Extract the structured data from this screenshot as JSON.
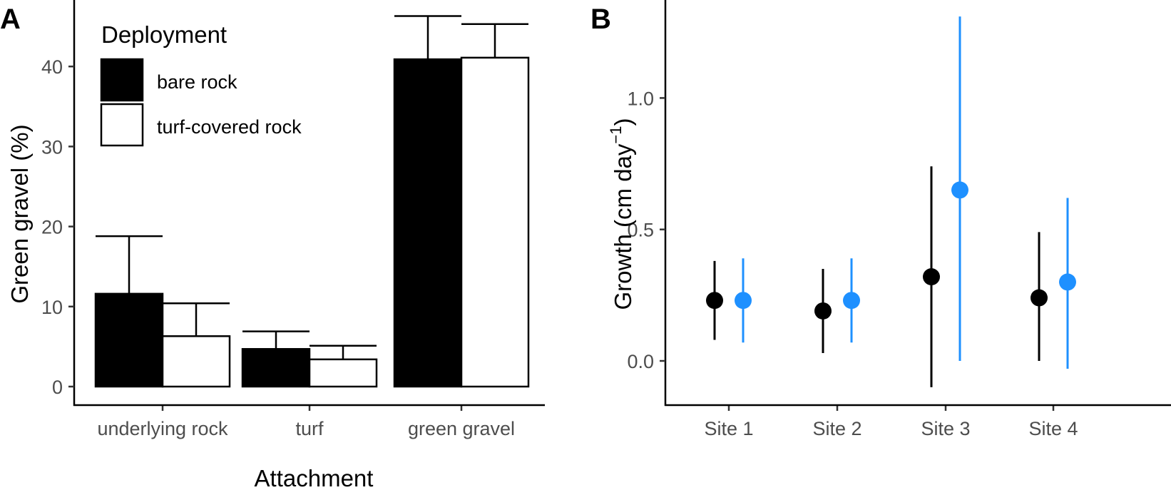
{
  "chart_data": [
    {
      "panel": "A",
      "type": "bar",
      "xlabel": "Attachment",
      "ylabel": "Green gravel (%)",
      "categories": [
        "underlying rock",
        "turf",
        "green gravel"
      ],
      "ylim": [
        -2,
        48.5
      ],
      "yticks": [
        0,
        10,
        20,
        30,
        40
      ],
      "legend": {
        "title": "Deployment",
        "position": "top-left"
      },
      "grid": false,
      "series": [
        {
          "name": "bare rock",
          "color": "#000000",
          "values": [
            11.6,
            4.7,
            40.9
          ],
          "error_upper": [
            18.8,
            6.9,
            46.3
          ]
        },
        {
          "name": "turf-covered rock",
          "color": "#ffffff",
          "values": [
            6.3,
            3.4,
            41.1
          ],
          "error_upper": [
            10.4,
            5.1,
            45.3
          ]
        }
      ]
    },
    {
      "panel": "B",
      "type": "scatter",
      "xlabel": "",
      "ylabel": "Growth (cm day",
      "ylabel_superscript": "−1",
      "ylabel_close": ")",
      "categories": [
        "Site 1",
        "Site 2",
        "Site 3",
        "Site 4"
      ],
      "ylim": [
        -0.17,
        1.37
      ],
      "yticks": [
        "0.0",
        "0.5",
        "1.0"
      ],
      "grid": false,
      "series": [
        {
          "color": "#000000",
          "values": [
            0.23,
            0.19,
            0.32,
            0.24
          ],
          "lower": [
            0.08,
            0.03,
            -0.1,
            0.0
          ],
          "upper": [
            0.38,
            0.35,
            0.74,
            0.49
          ]
        },
        {
          "color": "#1e90ff",
          "values": [
            0.23,
            0.23,
            0.65,
            0.3
          ],
          "lower": [
            0.07,
            0.07,
            0.0,
            -0.03
          ],
          "upper": [
            0.39,
            0.39,
            1.31,
            0.62
          ]
        }
      ]
    }
  ]
}
